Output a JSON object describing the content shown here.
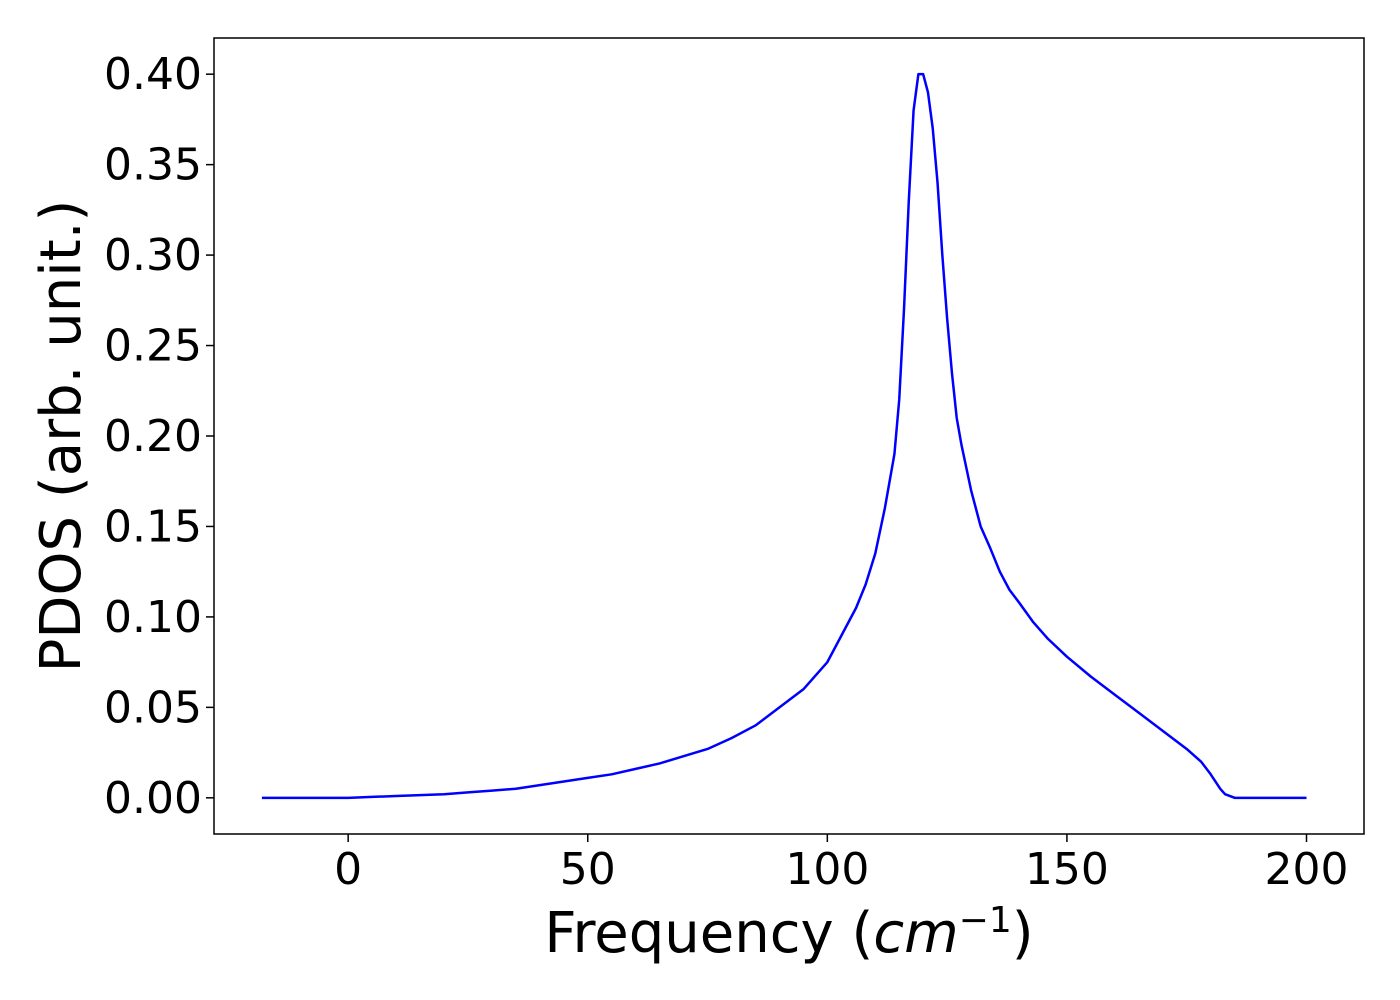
{
  "chart_data": {
    "type": "line",
    "xlabel": "Frequency",
    "xlabel_unit_base": "cm",
    "xlabel_unit_exponent": "−1",
    "ylabel": "PDOS (arb. unit.)",
    "xlim": [
      -28,
      212
    ],
    "ylim": [
      -0.02,
      0.42
    ],
    "xticks": [
      0,
      50,
      100,
      150,
      200
    ],
    "xtick_labels": [
      "0",
      "50",
      "100",
      "150",
      "200"
    ],
    "yticks": [
      0.0,
      0.05,
      0.1,
      0.15,
      0.2,
      0.25,
      0.3,
      0.35,
      0.4
    ],
    "ytick_labels": [
      "0.00",
      "0.05",
      "0.10",
      "0.15",
      "0.20",
      "0.25",
      "0.30",
      "0.35",
      "0.40"
    ],
    "grid": false,
    "series": [
      {
        "color": "#0000ff",
        "x": [
          -18,
          -10,
          0,
          5,
          10,
          15,
          20,
          25,
          30,
          35,
          40,
          45,
          50,
          55,
          60,
          65,
          70,
          75,
          80,
          85,
          90,
          95,
          100,
          103,
          106,
          108,
          110,
          112,
          114,
          115,
          116,
          117,
          118,
          119,
          120,
          121,
          122,
          123,
          124,
          125,
          126,
          127,
          128,
          130,
          132,
          134,
          136,
          138,
          140,
          143,
          146,
          150,
          155,
          160,
          165,
          170,
          175,
          178,
          180,
          182,
          183,
          185,
          190,
          200
        ],
        "y": [
          0.0,
          0.0,
          0.0,
          0.0005,
          0.001,
          0.0015,
          0.002,
          0.003,
          0.004,
          0.005,
          0.007,
          0.009,
          0.011,
          0.013,
          0.016,
          0.019,
          0.023,
          0.027,
          0.033,
          0.04,
          0.05,
          0.06,
          0.075,
          0.09,
          0.105,
          0.118,
          0.135,
          0.16,
          0.19,
          0.22,
          0.27,
          0.33,
          0.38,
          0.4,
          0.4,
          0.39,
          0.37,
          0.34,
          0.3,
          0.265,
          0.235,
          0.21,
          0.195,
          0.17,
          0.15,
          0.138,
          0.125,
          0.115,
          0.108,
          0.097,
          0.088,
          0.078,
          0.067,
          0.057,
          0.047,
          0.037,
          0.027,
          0.02,
          0.013,
          0.005,
          0.002,
          0.0,
          0.0,
          0.0
        ]
      }
    ]
  }
}
